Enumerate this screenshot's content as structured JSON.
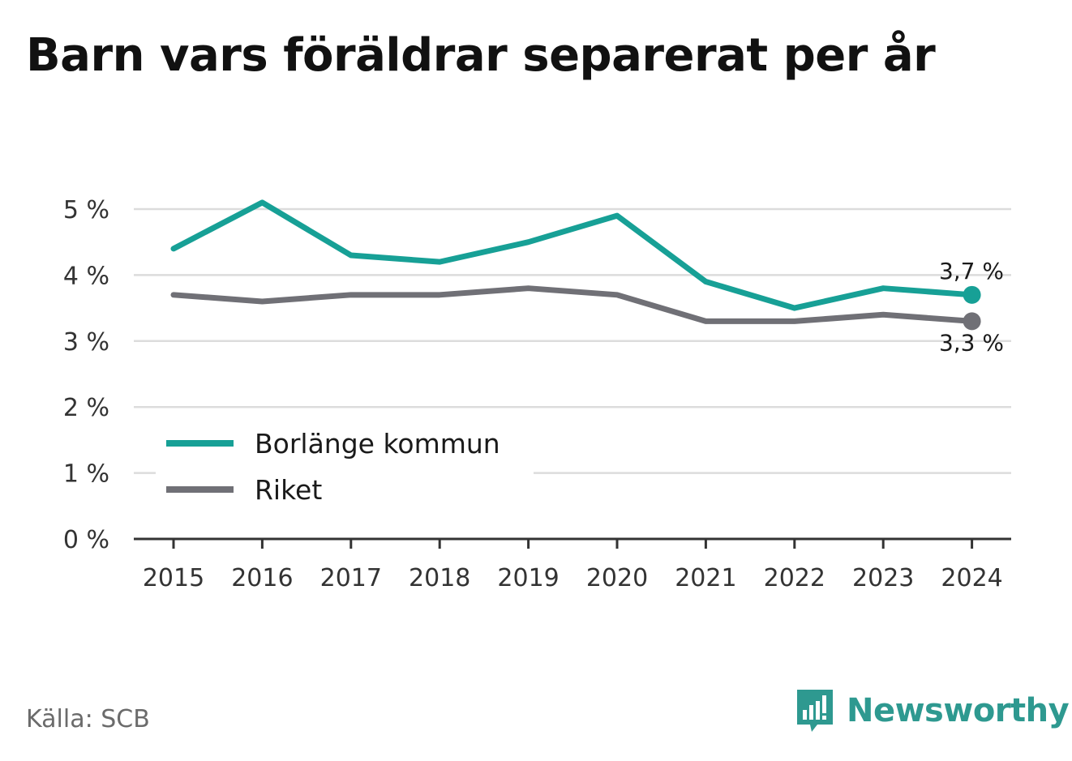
{
  "title": "Barn vars föräldrar separerat per år",
  "source": "Källa: SCB",
  "brand": {
    "name": "Newsworthy",
    "logo_icon": "bar-chart-speech-bubble-icon",
    "color": "#2e9990"
  },
  "chart_data": {
    "type": "line",
    "title": "Barn vars föräldrar separerat per år",
    "x": [
      "2015",
      "2016",
      "2017",
      "2018",
      "2019",
      "2020",
      "2021",
      "2022",
      "2023",
      "2024"
    ],
    "ylim": [
      0,
      5
    ],
    "yticks": [
      0,
      1,
      2,
      3,
      4,
      5
    ],
    "ytick_labels": [
      "0 %",
      "1 %",
      "2 %",
      "3 %",
      "4 %",
      "5 %"
    ],
    "grid": true,
    "legend_position": "bottom-left",
    "series": [
      {
        "name": "Borlänge kommun",
        "color": "#17a096",
        "values": [
          4.4,
          5.1,
          4.3,
          4.2,
          4.5,
          4.9,
          3.9,
          3.5,
          3.8,
          3.7
        ],
        "end_label": "3,7 %"
      },
      {
        "name": "Riket",
        "color": "#707076",
        "values": [
          3.7,
          3.6,
          3.7,
          3.7,
          3.8,
          3.7,
          3.3,
          3.3,
          3.4,
          3.3
        ],
        "end_label": "3,3 %"
      }
    ]
  }
}
